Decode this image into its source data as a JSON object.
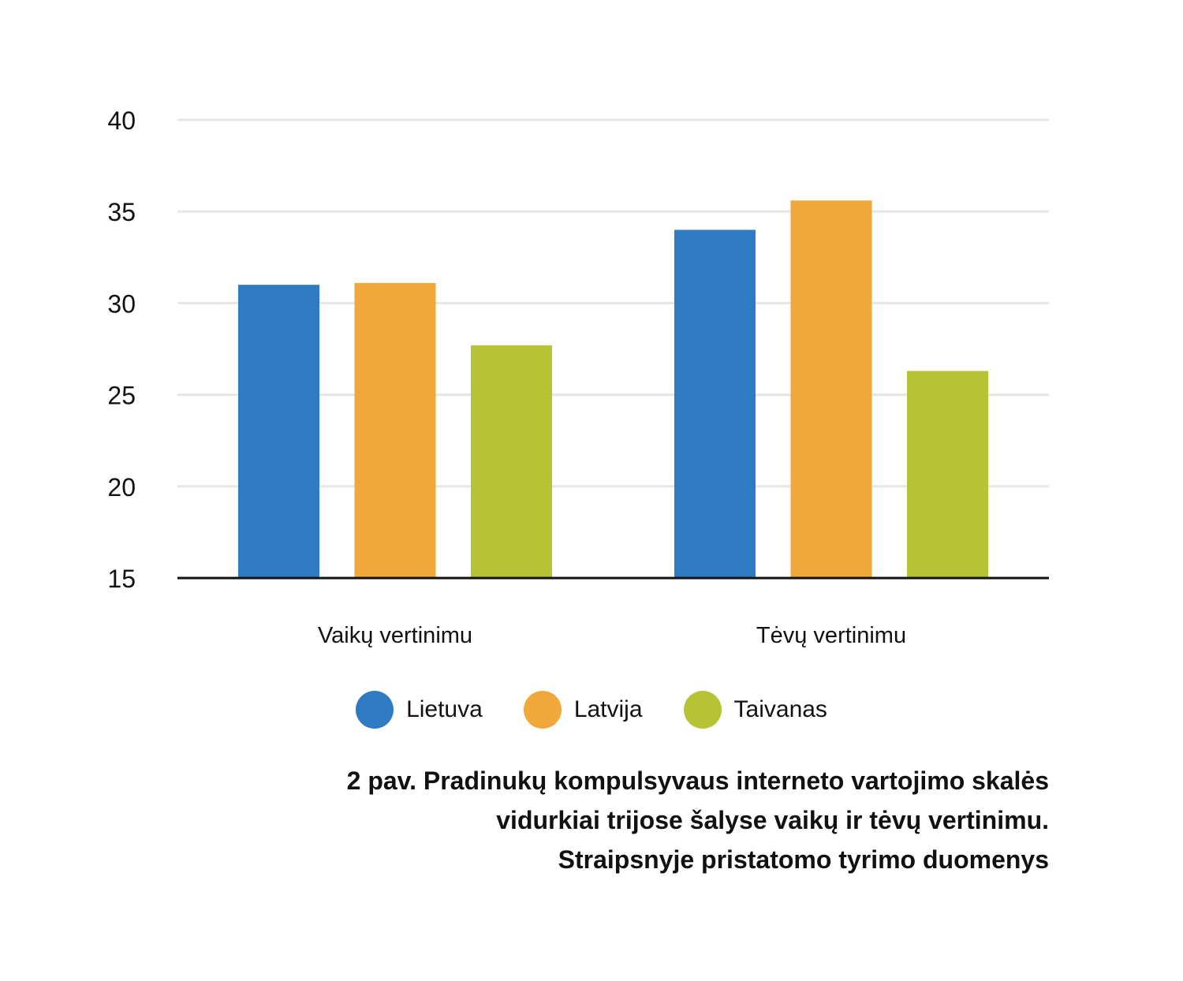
{
  "chart_data": {
    "type": "bar",
    "categories": [
      "Vaikų vertinimu",
      "Tėvų vertinimu"
    ],
    "series": [
      {
        "name": "Lietuva",
        "color": "#2e7bc3",
        "values": [
          31.0,
          34.0
        ]
      },
      {
        "name": "Latvija",
        "color": "#f0a83a",
        "values": [
          31.1,
          35.6
        ]
      },
      {
        "name": "Taivanas",
        "color": "#b5c334",
        "values": [
          27.7,
          26.3
        ]
      }
    ],
    "ylim": [
      15,
      40
    ],
    "yticks": [
      "15",
      "20",
      "25",
      "30",
      "35",
      "40"
    ],
    "grid": true,
    "legend_position": "bottom"
  },
  "caption": {
    "line1": "2 pav. Pradinukų kompulsyvaus interneto vartojimo skalės",
    "line2": "vidurkiai trijose šalyse vaikų ir tėvų vertinimu.",
    "line3": "Straipsnyje pristatomo tyrimo duomenys"
  }
}
